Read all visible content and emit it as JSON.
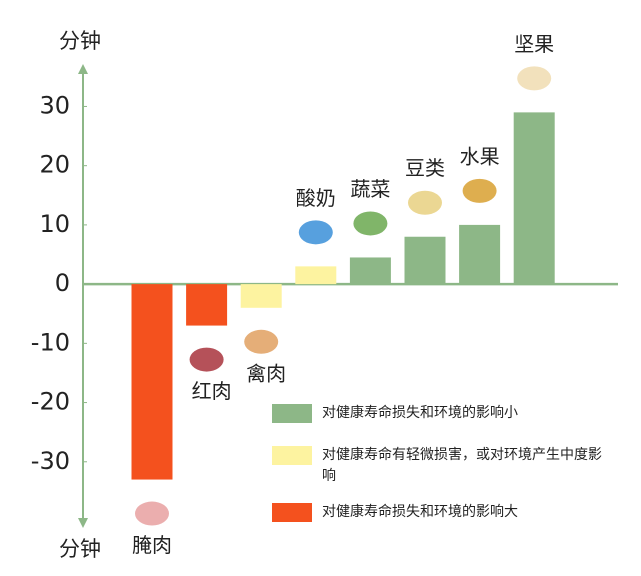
{
  "chart_data": {
    "type": "bar",
    "y_label": "分钟",
    "categories": [
      "腌肉",
      "红肉",
      "禽肉",
      "酸奶",
      "蔬菜",
      "豆类",
      "水果",
      "坚果"
    ],
    "values": [
      -33,
      -7,
      -4,
      3,
      4.5,
      8,
      10,
      29
    ],
    "colors": [
      "#f4511e",
      "#f4511e",
      "#fdf3a0",
      "#fdf3a0",
      "#8db787",
      "#8db787",
      "#8db787",
      "#8db787"
    ],
    "ylim": [
      -40,
      37
    ],
    "yticks": [
      -30,
      -20,
      -10,
      0,
      10,
      20,
      30
    ],
    "legend": [
      {
        "name": "对健康寿命损失和环境的影响小",
        "color": "#8db787"
      },
      {
        "name": "对健康寿命有轻微损害，或对环境产生中度影响",
        "color": "#fdf3a0"
      },
      {
        "name": "对健康寿命损失和环境的影响大",
        "color": "#f4511e"
      }
    ]
  }
}
